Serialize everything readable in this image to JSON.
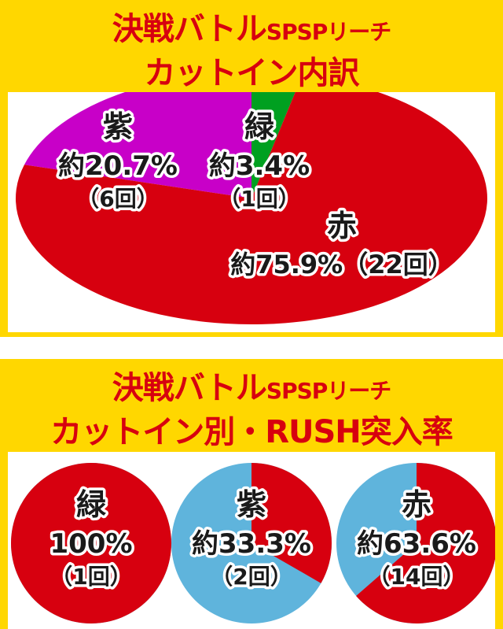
{
  "top": {
    "title_line1_main": "決戦バトル",
    "title_line1_sub": "SPSPリーチ",
    "title_line2": "カットイン内訳"
  },
  "bottom": {
    "title_line1_main": "決戦バトル",
    "title_line1_sub": "SPSPリーチ",
    "title_line2": "カットイン別・RUSH突入率"
  },
  "colors": {
    "red": "#D7000F",
    "purple": "#C800C8",
    "green": "#00A020",
    "blue": "#5FB4DC",
    "yellow": "#FFD700"
  },
  "chart_data": [
    {
      "type": "pie",
      "title": "決戦バトルSPSPリーチ カットイン内訳",
      "slices": [
        {
          "name": "紫",
          "percent_label": "約20.7%",
          "count_label": "（6回）",
          "value": 6,
          "percent": 20.7,
          "color": "#C800C8"
        },
        {
          "name": "緑",
          "percent_label": "約3.4%",
          "count_label": "（1回）",
          "value": 1,
          "percent": 3.4,
          "color": "#00A020"
        },
        {
          "name": "赤",
          "percent_label": "約75.9%",
          "count_label": "（22回）",
          "value": 22,
          "percent": 75.9,
          "color": "#D7000F"
        }
      ]
    },
    {
      "type": "pie",
      "title": "決戦バトルSPSPリーチ カットイン別・RUSH突入率",
      "pies": [
        {
          "name": "緑",
          "percent_label": "100%",
          "count_label": "（1回）",
          "percent": 100,
          "color": "#D7000F",
          "rest_color": "#5FB4DC"
        },
        {
          "name": "紫",
          "percent_label": "約33.3%",
          "count_label": "（2回）",
          "percent": 33.3,
          "color": "#D7000F",
          "rest_color": "#5FB4DC"
        },
        {
          "name": "赤",
          "percent_label": "約63.6%",
          "count_label": "（14回）",
          "percent": 63.6,
          "color": "#D7000F",
          "rest_color": "#5FB4DC"
        }
      ]
    }
  ]
}
